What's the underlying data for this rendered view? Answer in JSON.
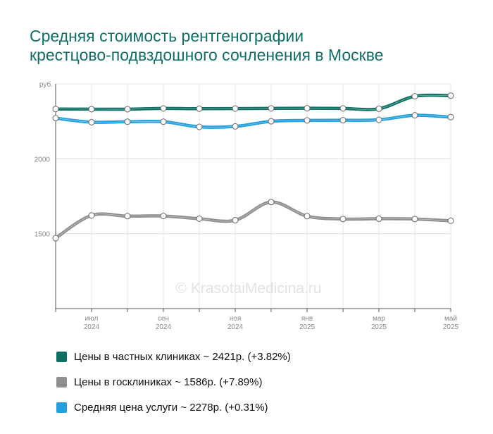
{
  "title_lines": [
    "Средняя стоимость рентгенографии",
    "крестцово-подвздошного сочленения в Москве"
  ],
  "watermark": "© KrasotaiMedicina.ru",
  "chart_data": {
    "type": "line",
    "ylabel": "руб.",
    "ylim": [
      1000,
      2500
    ],
    "y_ticks": [
      {
        "value": 2000,
        "label": "2000"
      },
      {
        "value": 1500,
        "label": "1500"
      }
    ],
    "x_ticks": [
      {
        "month": "июл",
        "year": "2024"
      },
      {
        "month": "сен",
        "year": "2024"
      },
      {
        "month": "ноя",
        "year": "2024"
      },
      {
        "month": "янв",
        "year": "2025"
      },
      {
        "month": "мар",
        "year": "2025"
      },
      {
        "month": "май",
        "year": "2025"
      }
    ],
    "series": [
      {
        "name": "Цены в частных клиниках",
        "color": "#0f6f63",
        "values": [
          2332,
          2331,
          2331,
          2336,
          2334,
          2335,
          2336,
          2337,
          2336,
          2334,
          2417,
          2421
        ]
      },
      {
        "name": "Средняя цена услуги",
        "color": "#23a0dd",
        "values": [
          2271,
          2244,
          2247,
          2247,
          2213,
          2216,
          2250,
          2256,
          2257,
          2260,
          2290,
          2278
        ]
      },
      {
        "name": "Цены в госклиниках",
        "color": "#8f8f8f",
        "values": [
          1470,
          1622,
          1617,
          1618,
          1600,
          1590,
          1711,
          1617,
          1598,
          1600,
          1598,
          1586
        ]
      }
    ]
  },
  "legend": [
    {
      "label": "Цены в частных клиниках ~ 2421р. (+3.82%)",
      "color": "#0f6f63"
    },
    {
      "label": "Цены в госклиниках ~ 1586р. (+7.89%)",
      "color": "#8f8f8f"
    },
    {
      "label": "Средняя цена услуги ~ 2278р. (+0.31%)",
      "color": "#23a0dd"
    }
  ]
}
